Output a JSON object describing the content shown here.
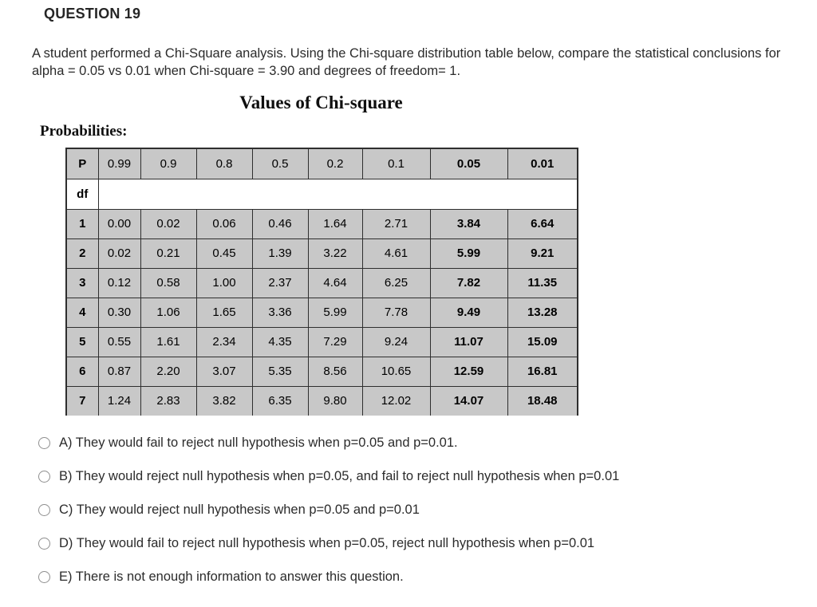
{
  "question": {
    "header": "QUESTION 19",
    "text": "A student performed a Chi-Square analysis. Using the Chi-square distribution table below, compare the statistical conclusions for alpha = 0.05 vs 0.01 when Chi-square = 3.90 and degrees of freedom= 1."
  },
  "figure": {
    "title": "Values of Chi-square",
    "probabilities_label": "Probabilities:",
    "df_label": "df"
  },
  "chart_data": {
    "type": "table",
    "title": "Values of Chi-square",
    "columns": [
      "P",
      "0.99",
      "0.9",
      "0.8",
      "0.5",
      "0.2",
      "0.1",
      "0.05",
      "0.01"
    ],
    "bold_columns": [
      "P",
      "0.05",
      "0.01"
    ],
    "rows": [
      {
        "df": "1",
        "values": [
          "0.00",
          "0.02",
          "0.06",
          "0.46",
          "1.64",
          "2.71",
          "3.84",
          "6.64"
        ]
      },
      {
        "df": "2",
        "values": [
          "0.02",
          "0.21",
          "0.45",
          "1.39",
          "3.22",
          "4.61",
          "5.99",
          "9.21"
        ]
      },
      {
        "df": "3",
        "values": [
          "0.12",
          "0.58",
          "1.00",
          "2.37",
          "4.64",
          "6.25",
          "7.82",
          "11.35"
        ]
      },
      {
        "df": "4",
        "values": [
          "0.30",
          "1.06",
          "1.65",
          "3.36",
          "5.99",
          "7.78",
          "9.49",
          "13.28"
        ]
      },
      {
        "df": "5",
        "values": [
          "0.55",
          "1.61",
          "2.34",
          "4.35",
          "7.29",
          "9.24",
          "11.07",
          "15.09"
        ]
      },
      {
        "df": "6",
        "values": [
          "0.87",
          "2.20",
          "3.07",
          "5.35",
          "8.56",
          "10.65",
          "12.59",
          "16.81"
        ]
      },
      {
        "df": "7",
        "values": [
          "1.24",
          "2.83",
          "3.82",
          "6.35",
          "9.80",
          "12.02",
          "14.07",
          "18.48"
        ]
      }
    ]
  },
  "options": [
    {
      "id": "A",
      "label": "A) They would fail to reject null hypothesis when p=0.05 and p=0.01."
    },
    {
      "id": "B",
      "label": "B) They would reject null hypothesis when p=0.05, and fail to reject null hypothesis when p=0.01"
    },
    {
      "id": "C",
      "label": "C) They would reject null hypothesis when p=0.05 and p=0.01"
    },
    {
      "id": "D",
      "label": "D) They would fail to reject null hypothesis when p=0.05, reject null hypothesis when p=0.01"
    },
    {
      "id": "E",
      "label": "E) There is not enough information to answer this question."
    }
  ],
  "colors": {
    "cell_gray": "#c8c8c8",
    "table_border": "#2e2e2e",
    "text": "#2b2b2b",
    "radio_border": "#8f8f8f"
  }
}
